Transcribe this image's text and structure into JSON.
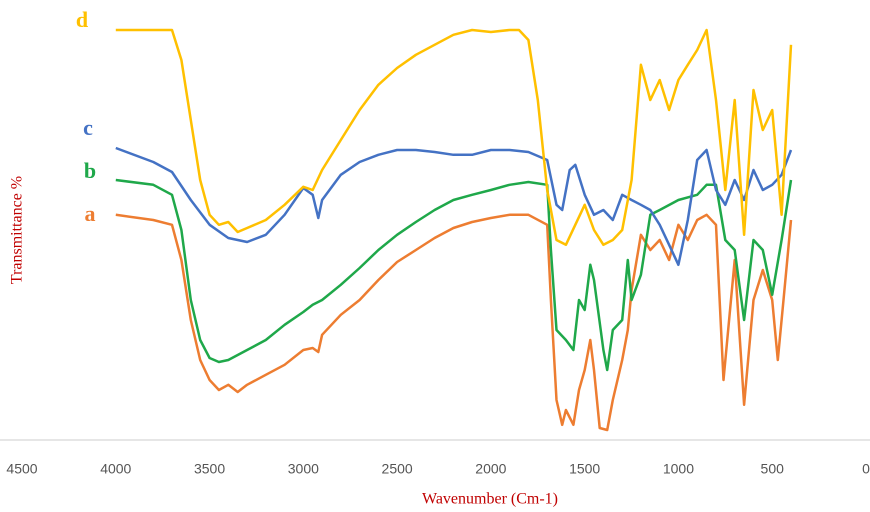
{
  "chart_data": {
    "type": "line",
    "x_label": "Wavenumber (Cm-1)",
    "y_label": "Transmittance %",
    "xlim": [
      4500,
      0
    ],
    "xticks": [
      4500,
      4000,
      3500,
      3000,
      2500,
      2000,
      1500,
      1000,
      500,
      0
    ],
    "ylim": [
      0,
      105
    ],
    "series": [
      {
        "name": "a",
        "color": "#ED7D31",
        "x": [
          4000,
          3800,
          3700,
          3650,
          3600,
          3550,
          3500,
          3450,
          3400,
          3350,
          3300,
          3200,
          3100,
          3000,
          2950,
          2920,
          2900,
          2800,
          2700,
          2600,
          2500,
          2400,
          2300,
          2200,
          2100,
          2000,
          1900,
          1800,
          1700,
          1680,
          1650,
          1620,
          1600,
          1560,
          1530,
          1500,
          1470,
          1450,
          1420,
          1380,
          1350,
          1300,
          1270,
          1250,
          1200,
          1150,
          1100,
          1050,
          1000,
          950,
          900,
          850,
          800,
          760,
          700,
          650,
          600,
          550,
          500,
          470,
          440,
          400
        ],
        "values": [
          56.3,
          55,
          53.8,
          45,
          30,
          20,
          15,
          12.5,
          13.8,
          12,
          13.8,
          16.3,
          18.8,
          22.5,
          23,
          22,
          26.3,
          31.3,
          35,
          40,
          44.5,
          47.5,
          50.5,
          53,
          54.5,
          55.5,
          56.3,
          56.3,
          53.8,
          35,
          10,
          3.8,
          7.5,
          3.8,
          12.5,
          17.5,
          25,
          17.5,
          3,
          2.5,
          10,
          20,
          27.5,
          37.5,
          51.3,
          47.5,
          50,
          45,
          53.8,
          50,
          55,
          56.3,
          53.8,
          15,
          45,
          8.8,
          35,
          42.5,
          35,
          20,
          35,
          55
        ]
      },
      {
        "name": "b",
        "color": "#1FA84A",
        "x": [
          4000,
          3800,
          3700,
          3650,
          3600,
          3550,
          3500,
          3450,
          3400,
          3300,
          3200,
          3100,
          3000,
          2950,
          2900,
          2800,
          2700,
          2600,
          2500,
          2400,
          2300,
          2200,
          2100,
          2000,
          1900,
          1800,
          1700,
          1680,
          1650,
          1600,
          1560,
          1530,
          1500,
          1470,
          1450,
          1400,
          1380,
          1350,
          1300,
          1270,
          1250,
          1200,
          1150,
          1100,
          1000,
          900,
          850,
          800,
          750,
          700,
          650,
          600,
          550,
          500,
          450,
          400
        ],
        "values": [
          65,
          63.8,
          61.3,
          52.5,
          35,
          25,
          20.5,
          19.5,
          20,
          22.5,
          25,
          28.8,
          32,
          33.8,
          35,
          38.8,
          43,
          47.5,
          51.3,
          54.5,
          57.5,
          60,
          61.3,
          62.5,
          63.8,
          64.5,
          63.8,
          47.5,
          27.5,
          25,
          22.5,
          35,
          32.5,
          43.8,
          40,
          22.5,
          17.5,
          27.5,
          30,
          45,
          35,
          41.3,
          56.3,
          57.5,
          60,
          61.3,
          63.8,
          63.8,
          50,
          47.5,
          30,
          50,
          47.5,
          36.3,
          50,
          65
        ]
      },
      {
        "name": "c",
        "color": "#4472C4",
        "x": [
          4000,
          3800,
          3700,
          3600,
          3500,
          3400,
          3300,
          3200,
          3100,
          3000,
          2950,
          2920,
          2900,
          2800,
          2700,
          2600,
          2500,
          2400,
          2300,
          2200,
          2100,
          2000,
          1900,
          1800,
          1700,
          1650,
          1620,
          1580,
          1550,
          1500,
          1450,
          1400,
          1350,
          1300,
          1250,
          1200,
          1150,
          1100,
          1050,
          1000,
          950,
          900,
          850,
          800,
          750,
          700,
          650,
          600,
          550,
          500,
          450,
          400
        ],
        "values": [
          73,
          69.5,
          67,
          60,
          53.8,
          50.5,
          49.5,
          51.3,
          56.3,
          63,
          61.3,
          55.5,
          60,
          66.3,
          69.5,
          71.3,
          72.5,
          72.5,
          72,
          71.3,
          71.3,
          72.5,
          72.5,
          72,
          70,
          58.8,
          57.5,
          67.5,
          68.8,
          61.3,
          56.3,
          57.5,
          55,
          61.3,
          60,
          58.8,
          57.5,
          53.8,
          48.8,
          43.8,
          55,
          70,
          72.5,
          62.5,
          58.8,
          65,
          60,
          67.5,
          62.5,
          63.8,
          66.3,
          72.5
        ]
      },
      {
        "name": "d",
        "color": "#FFC000",
        "x": [
          4000,
          3700,
          3650,
          3600,
          3550,
          3500,
          3450,
          3400,
          3350,
          3300,
          3200,
          3100,
          3000,
          2950,
          2900,
          2800,
          2700,
          2600,
          2500,
          2400,
          2300,
          2200,
          2100,
          2000,
          1900,
          1850,
          1800,
          1750,
          1700,
          1650,
          1600,
          1550,
          1500,
          1450,
          1400,
          1350,
          1300,
          1250,
          1200,
          1150,
          1100,
          1050,
          1000,
          950,
          900,
          850,
          800,
          750,
          700,
          650,
          600,
          550,
          500,
          450,
          400
        ],
        "values": [
          102.5,
          102.5,
          95,
          80,
          65,
          56.3,
          53.8,
          54.5,
          52,
          53,
          55,
          58.8,
          63.3,
          62.5,
          67.5,
          75,
          82.5,
          88.8,
          93,
          96.3,
          98.8,
          101.3,
          102.5,
          102,
          102.5,
          102.5,
          100,
          85,
          62.5,
          50,
          48.8,
          53.8,
          58.8,
          52.5,
          48.8,
          50,
          52.5,
          65,
          93.8,
          85,
          90,
          82.5,
          90,
          93.8,
          97.5,
          102.5,
          85,
          62.5,
          85,
          51.3,
          87.5,
          77.5,
          82.5,
          56.3,
          98.8
        ]
      }
    ]
  }
}
